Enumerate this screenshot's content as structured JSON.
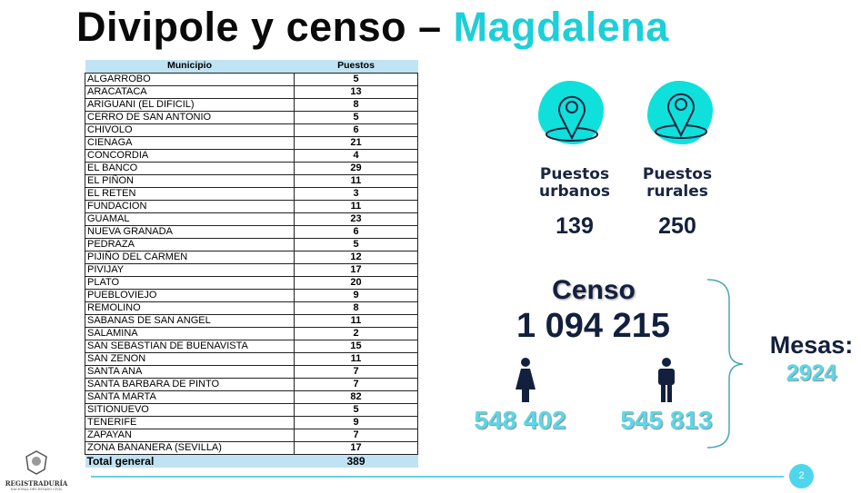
{
  "title": {
    "main": "Divipole y censo –",
    "accent": "Magdalena"
  },
  "table": {
    "headers": [
      "Municipio",
      "Puestos"
    ],
    "rows": [
      [
        "ALGARROBO",
        "5"
      ],
      [
        "ARACATACA",
        "13"
      ],
      [
        "ARIGUANI (EL DIFICIL)",
        "8"
      ],
      [
        "CERRO DE SAN ANTONIO",
        "5"
      ],
      [
        "CHIVOLO",
        "6"
      ],
      [
        "CIENAGA",
        "21"
      ],
      [
        "CONCORDIA",
        "4"
      ],
      [
        "EL BANCO",
        "29"
      ],
      [
        "EL PIÑON",
        "11"
      ],
      [
        "EL RETEN",
        "3"
      ],
      [
        "FUNDACION",
        "11"
      ],
      [
        "GUAMAL",
        "23"
      ],
      [
        "NUEVA GRANADA",
        "6"
      ],
      [
        "PEDRAZA",
        "5"
      ],
      [
        "PIJIÑO DEL CARMEN",
        "12"
      ],
      [
        "PIVIJAY",
        "17"
      ],
      [
        "PLATO",
        "20"
      ],
      [
        "PUEBLOVIEJO",
        "9"
      ],
      [
        "REMOLINO",
        "8"
      ],
      [
        "SABANAS DE SAN ANGEL",
        "11"
      ],
      [
        "SALAMINA",
        "2"
      ],
      [
        "SAN SEBASTIAN DE BUENAVISTA",
        "15"
      ],
      [
        "SAN ZENON",
        "11"
      ],
      [
        "SANTA ANA",
        "7"
      ],
      [
        "SANTA BARBARA DE PINTO",
        "7"
      ],
      [
        "SANTA MARTA",
        "82"
      ],
      [
        "SITIONUEVO",
        "5"
      ],
      [
        "TENERIFE",
        "9"
      ],
      [
        "ZAPAYAN",
        "7"
      ],
      [
        "ZONA BANANERA (SEVILLA)",
        "17"
      ]
    ],
    "total": {
      "label": "Total general",
      "value": "389"
    }
  },
  "puestos": {
    "urbanos": {
      "label": "Puestos urbanos",
      "value": "139",
      "icon": "map-pin-icon"
    },
    "rurales": {
      "label": "Puestos rurales",
      "value": "250",
      "icon": "map-pin-icon"
    }
  },
  "censo": {
    "label": "Censo",
    "total": "1 094 215",
    "mujeres": "548 402",
    "hombres": "545 813"
  },
  "mesas": {
    "label": "Mesas:",
    "value": "2924"
  },
  "footer": {
    "page": "2",
    "logo_text": "REGISTRADURÍA",
    "logo_sub": "NACIONAL DEL ESTADO CIVIL"
  },
  "colors": {
    "accent": "#1ccfd8",
    "dark": "#13203d",
    "blob": "#0fe0dc"
  }
}
